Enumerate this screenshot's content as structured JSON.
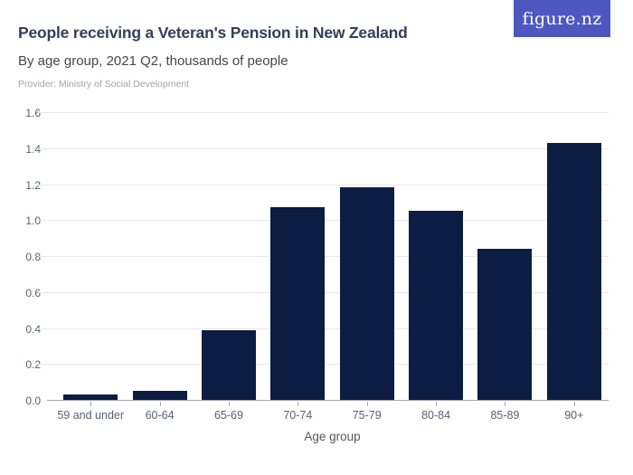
{
  "header": {
    "title": "People receiving a Veteran's Pension in New Zealand",
    "subtitle": "By age group, 2021 Q2, thousands of people",
    "provider": "Provider: Ministry of Social Development",
    "logo_text": "figure.nz"
  },
  "colors": {
    "bar": "#0c1c42",
    "logo_background": "#4e57c0",
    "title_text": "#333e5a",
    "subtitle_text": "#45464e",
    "provider_text": "#a3a3a9",
    "axis_label_text": "#5a6173",
    "gridline": "#e8e8ea",
    "axis_line": "#a6a6aa"
  },
  "chart_data": {
    "type": "bar",
    "title": "People receiving a Veteran's Pension in New Zealand",
    "subtitle": "By age group, 2021 Q2, thousands of people",
    "categories": [
      "59 and under",
      "60-64",
      "65-69",
      "70-74",
      "75-79",
      "80-84",
      "85-89",
      "90+"
    ],
    "values": [
      0.03,
      0.05,
      0.39,
      1.07,
      1.18,
      1.05,
      0.84,
      1.43
    ],
    "xlabel": "Age group",
    "ylabel": "",
    "ylim": [
      0,
      1.6
    ],
    "yticks": [
      0.0,
      0.2,
      0.4,
      0.6,
      0.8,
      1.0,
      1.2,
      1.4,
      1.6
    ],
    "grid": true,
    "legend": false
  }
}
